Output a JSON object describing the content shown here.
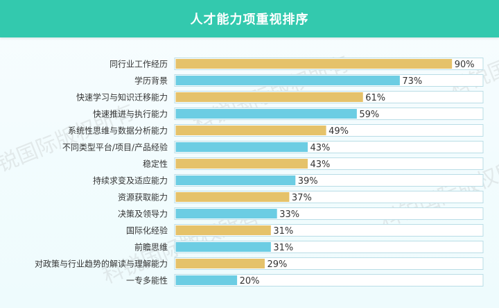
{
  "header": {
    "title": "人才能力项重视排序"
  },
  "watermark": "科锐国际版权所有",
  "colors": {
    "header": "#33c9ae",
    "bar_gold": "#e5c26a",
    "bar_blue": "#6ccde3",
    "track_border": "#b9dde6"
  },
  "chart_data": {
    "type": "bar",
    "orientation": "horizontal",
    "title": "人才能力项重视排序",
    "unit": "%",
    "xlim": [
      0,
      100
    ],
    "grid": false,
    "categories": [
      "同行业工作经历",
      "学历背景",
      "快速学习与知识迁移能力",
      "快速推进与执行能力",
      "系统性思维与数据分析能力",
      "不同类型平台/项目/产品经验",
      "稳定性",
      "持续求变及适应能力",
      "资源获取能力",
      "决策及领导力",
      "国际化经验",
      "前瞻思维",
      "对政策与行业趋势的解读与理解能力",
      "一专多能性"
    ],
    "values": [
      90,
      73,
      61,
      59,
      49,
      43,
      43,
      39,
      37,
      33,
      31,
      31,
      29,
      20
    ],
    "labels": [
      "90%",
      "73%",
      "61%",
      "59%",
      "49%",
      "43%",
      "43%",
      "39%",
      "37%",
      "33%",
      "31%",
      "31%",
      "29%",
      "20%"
    ]
  }
}
